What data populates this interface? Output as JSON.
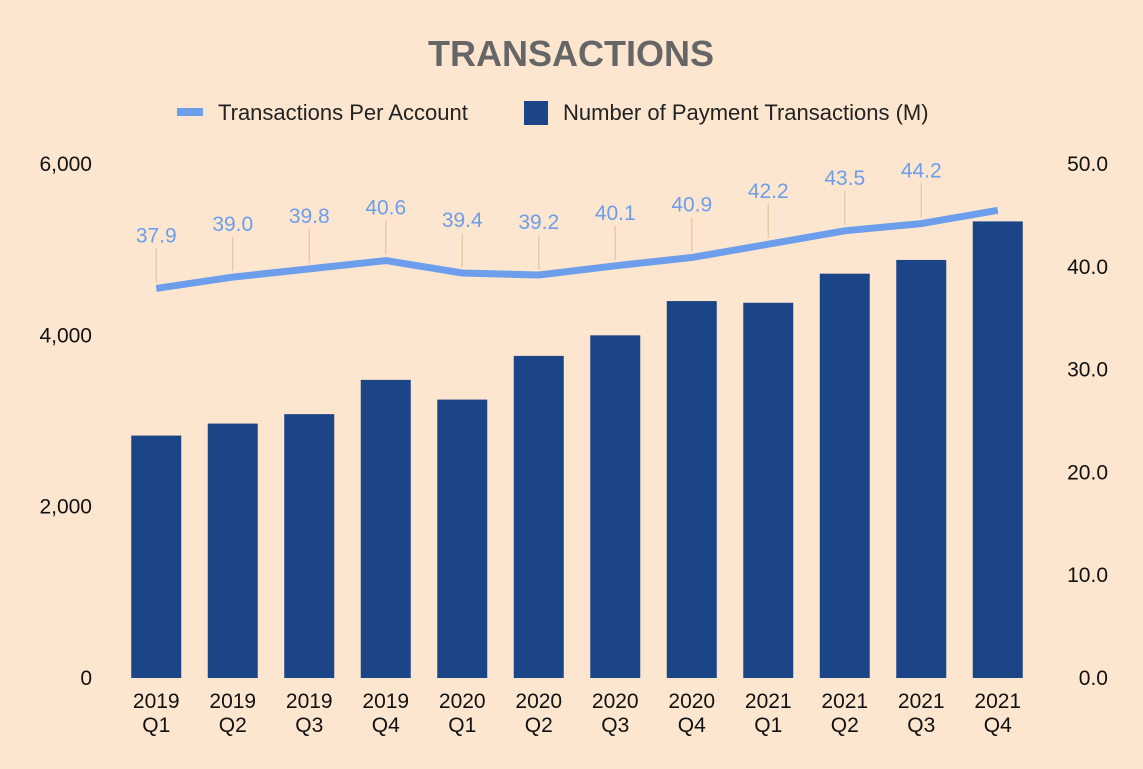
{
  "chart_data": {
    "type": "bar",
    "title": "TRANSACTIONS",
    "categories": [
      [
        "2019",
        "Q1"
      ],
      [
        "2019",
        "Q2"
      ],
      [
        "2019",
        "Q3"
      ],
      [
        "2019",
        "Q4"
      ],
      [
        "2020",
        "Q1"
      ],
      [
        "2020",
        "Q2"
      ],
      [
        "2020",
        "Q3"
      ],
      [
        "2020",
        "Q4"
      ],
      [
        "2021",
        "Q1"
      ],
      [
        "2021",
        "Q2"
      ],
      [
        "2021",
        "Q3"
      ],
      [
        "2021",
        "Q4"
      ]
    ],
    "series": [
      {
        "name": "Number of Payment Transactions (M)",
        "type": "bar",
        "axis": "left",
        "color": "#1c4587",
        "values": [
          2830,
          2970,
          3080,
          3480,
          3250,
          3760,
          4000,
          4400,
          4380,
          4720,
          4880,
          5330
        ]
      },
      {
        "name": "Transactions Per Account",
        "type": "line",
        "axis": "right",
        "color": "#6d9eeb",
        "values": [
          37.9,
          39.0,
          39.8,
          40.6,
          39.4,
          39.2,
          40.1,
          40.9,
          42.2,
          43.5,
          44.2,
          45.5
        ],
        "labels": [
          "37.9",
          "39.0",
          "39.8",
          "40.6",
          "39.4",
          "39.2",
          "40.1",
          "40.9",
          "42.2",
          "43.5",
          "44.2",
          ""
        ]
      }
    ],
    "y_left": {
      "ylim": [
        0,
        6000
      ],
      "ticks": [
        "0",
        "2,000",
        "4,000",
        "6,000"
      ],
      "tick_values": [
        0,
        2000,
        4000,
        6000
      ]
    },
    "y_right": {
      "ylim": [
        0,
        50
      ],
      "ticks": [
        "0.0",
        "10.0",
        "20.0",
        "30.0",
        "40.0",
        "50.0"
      ],
      "tick_values": [
        0,
        10,
        20,
        30,
        40,
        50
      ]
    },
    "legend_position": "top-center",
    "grid": false,
    "background": "#fde6cf",
    "label_color": "#6d9eeb"
  }
}
